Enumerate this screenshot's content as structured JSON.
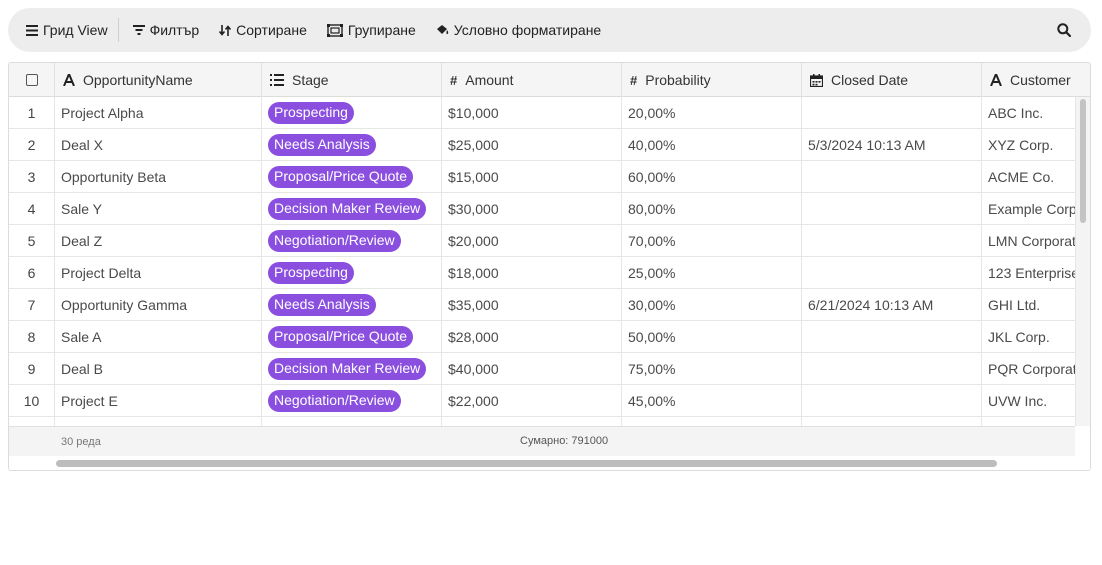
{
  "toolbar": {
    "items": [
      {
        "label": "Грид View",
        "icon": "list-icon"
      },
      {
        "label": "Филтър",
        "icon": "filter-icon"
      },
      {
        "label": "Сортиране",
        "icon": "sort-icon"
      },
      {
        "label": "Групиране",
        "icon": "group-icon"
      },
      {
        "label": "Условно форматиране",
        "icon": "paint-icon"
      }
    ],
    "search_icon": "search-icon"
  },
  "columns": [
    {
      "label": "OpportunityName",
      "type_icon": "A"
    },
    {
      "label": "Stage",
      "type_icon": "list"
    },
    {
      "label": "Amount",
      "type_icon": "#"
    },
    {
      "label": "Probability",
      "type_icon": "#"
    },
    {
      "label": "Closed Date",
      "type_icon": "calendar"
    },
    {
      "label": "Customer",
      "type_icon": "A"
    }
  ],
  "rows": [
    {
      "n": "1",
      "name": "Project Alpha",
      "stage": "Prospecting",
      "amount": "$10,000",
      "prob": "20,00%",
      "closed": "",
      "customer": "ABC Inc."
    },
    {
      "n": "2",
      "name": "Deal X",
      "stage": "Needs Analysis",
      "amount": "$25,000",
      "prob": "40,00%",
      "closed": "5/3/2024 10:13 AM",
      "customer": "XYZ Corp."
    },
    {
      "n": "3",
      "name": "Opportunity Beta",
      "stage": "Proposal/Price Quote",
      "amount": "$15,000",
      "prob": "60,00%",
      "closed": "",
      "customer": "ACME Co."
    },
    {
      "n": "4",
      "name": "Sale Y",
      "stage": "Decision Maker Review",
      "amount": "$30,000",
      "prob": "80,00%",
      "closed": "",
      "customer": "Example Corp"
    },
    {
      "n": "5",
      "name": "Deal Z",
      "stage": "Negotiation/Review",
      "amount": "$20,000",
      "prob": "70,00%",
      "closed": "",
      "customer": "LMN Corporat"
    },
    {
      "n": "6",
      "name": "Project Delta",
      "stage": "Prospecting",
      "amount": "$18,000",
      "prob": "25,00%",
      "closed": "",
      "customer": "123 Enterprise"
    },
    {
      "n": "7",
      "name": "Opportunity Gamma",
      "stage": "Needs Analysis",
      "amount": "$35,000",
      "prob": "30,00%",
      "closed": "6/21/2024 10:13 AM",
      "customer": "GHI Ltd."
    },
    {
      "n": "8",
      "name": "Sale A",
      "stage": "Proposal/Price Quote",
      "amount": "$28,000",
      "prob": "50,00%",
      "closed": "",
      "customer": "JKL Corp."
    },
    {
      "n": "9",
      "name": "Deal B",
      "stage": "Decision Maker Review",
      "amount": "$40,000",
      "prob": "75,00%",
      "closed": "",
      "customer": "PQR Corporati"
    },
    {
      "n": "10",
      "name": "Project E",
      "stage": "Negotiation/Review",
      "amount": "$22,000",
      "prob": "45,00%",
      "closed": "",
      "customer": "UVW Inc."
    }
  ],
  "footer": {
    "row_count": "30 реда",
    "sum": "Сумарно: 791000"
  },
  "colors": {
    "badge": "#8b4fe0",
    "toolbar_bg": "#ededed"
  }
}
